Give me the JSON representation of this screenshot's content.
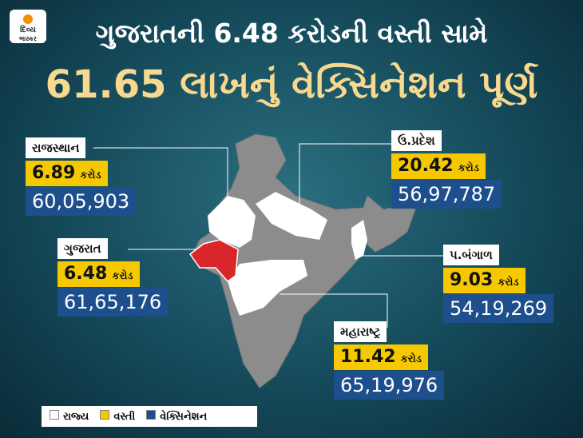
{
  "logo": {
    "line1": "દિવ્ય",
    "line2": "ભાસ્કર"
  },
  "header": {
    "title": "ગુજરાતની 6.48 કરોડની વસ્તી સામે",
    "subtitle": "61.65 લાખનું વેક્સિનેશન પૂર્ણ"
  },
  "states": [
    {
      "name": "રાજસ્થાન",
      "population": "6.89",
      "unit": "કરોડ",
      "vaccination": "60,05,903"
    },
    {
      "name": "ઉ.પ્રદેશ",
      "population": "20.42",
      "unit": "કરોડ",
      "vaccination": "56,97,787"
    },
    {
      "name": "ગુજરાત",
      "population": "6.48",
      "unit": "કરોડ",
      "vaccination": "61,65,176"
    },
    {
      "name": "પ.બંગાળ",
      "population": "9.03",
      "unit": "કરોડ",
      "vaccination": "54,19,269"
    },
    {
      "name": "મહારાષ્ટ્ર",
      "population": "11.42",
      "unit": "કરોડ",
      "vaccination": "65,19,976"
    }
  ],
  "legend": [
    "રાજ્ય",
    "વસ્તી",
    "વેક્સિનેશન"
  ]
}
